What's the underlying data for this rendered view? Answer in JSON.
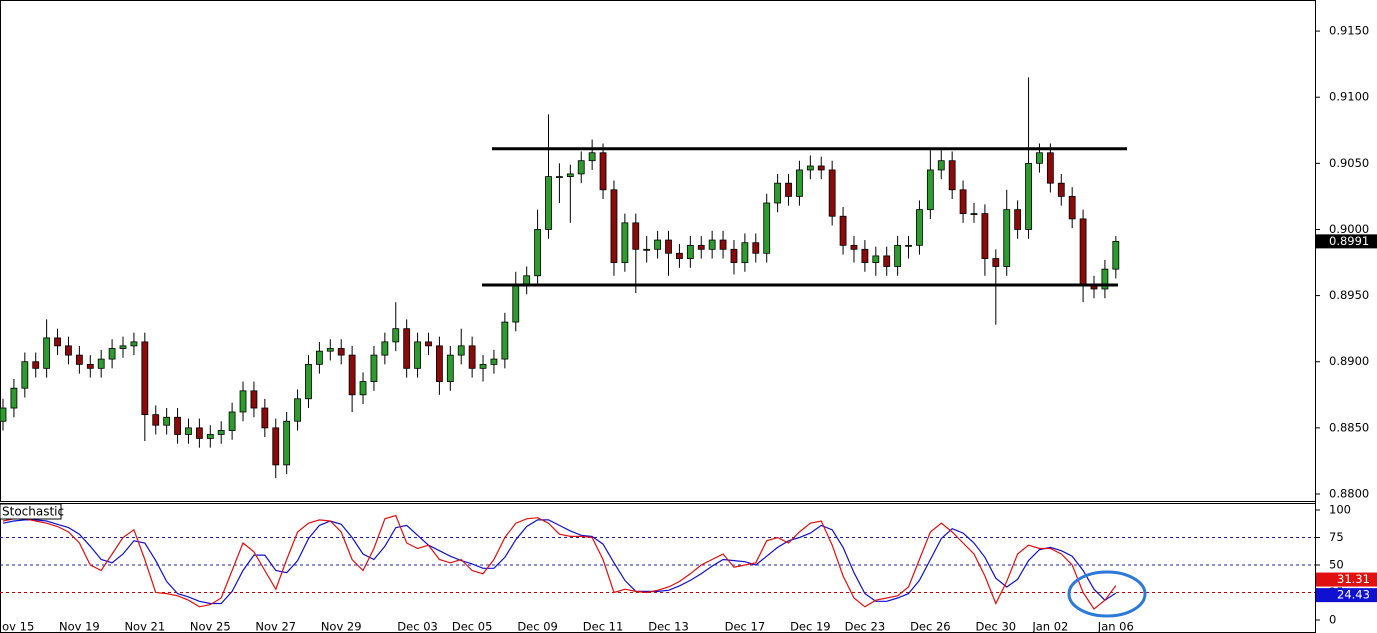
{
  "chart_data": [
    {
      "type": "candlestick",
      "categories": [
        null,
        "Nov 15",
        null,
        null,
        null,
        null,
        null,
        "Nov 19",
        null,
        null,
        null,
        null,
        null,
        "Nov 21",
        null,
        null,
        null,
        null,
        null,
        "Nov 25",
        null,
        null,
        null,
        null,
        null,
        "Nov 27",
        null,
        null,
        null,
        null,
        null,
        "Nov 29",
        null,
        null,
        null,
        null,
        null,
        null,
        "Dec 03",
        null,
        null,
        null,
        null,
        "Dec 05",
        null,
        null,
        null,
        null,
        null,
        "Dec 09",
        null,
        null,
        null,
        null,
        null,
        "Dec 11",
        null,
        null,
        null,
        null,
        null,
        "Dec 13",
        null,
        null,
        null,
        null,
        null,
        null,
        "Dec 17",
        null,
        null,
        null,
        null,
        null,
        "Dec 19",
        null,
        null,
        null,
        null,
        "Dec 23",
        null,
        null,
        null,
        null,
        null,
        "Dec 26",
        null,
        null,
        null,
        null,
        null,
        "Dec 30",
        null,
        null,
        null,
        null,
        "Jan 02",
        null,
        null,
        null,
        null,
        null,
        "Jan 06"
      ],
      "open": [
        0.8855,
        0.8865,
        0.888,
        0.89,
        0.8895,
        0.8918,
        0.8912,
        0.8905,
        0.8898,
        0.8895,
        0.8902,
        0.891,
        0.8912,
        0.8915,
        0.886,
        0.8852,
        0.8858,
        0.8845,
        0.885,
        0.8842,
        0.8845,
        0.8848,
        0.8862,
        0.8878,
        0.8865,
        0.885,
        0.8822,
        0.8855,
        0.8872,
        0.8898,
        0.8908,
        0.891,
        0.8905,
        0.8875,
        0.8885,
        0.8905,
        0.8915,
        0.8925,
        0.8895,
        0.8915,
        0.8912,
        0.8885,
        0.8905,
        0.8912,
        0.8895,
        0.8898,
        0.8902,
        0.893,
        0.8958,
        0.8965,
        0.9,
        0.904,
        0.904,
        0.9042,
        0.9052,
        0.9058,
        0.903,
        0.8975,
        0.9005,
        0.8985,
        0.8985,
        0.8992,
        0.8982,
        0.8978,
        0.8988,
        0.8985,
        0.8992,
        0.8985,
        0.8975,
        0.899,
        0.8982,
        0.902,
        0.9035,
        0.9025,
        0.9045,
        0.9048,
        0.9045,
        0.901,
        0.8988,
        0.8985,
        0.8975,
        0.898,
        0.8972,
        0.8988,
        0.8988,
        0.9015,
        0.9045,
        0.9052,
        0.903,
        0.9012,
        0.9012,
        0.8978,
        0.8972,
        0.9015,
        0.9,
        0.905,
        0.9058,
        0.9035,
        0.9025,
        0.9008,
        0.8958,
        0.8955,
        0.897
      ],
      "high": [
        0.8872,
        0.8887,
        0.8907,
        0.8907,
        0.8932,
        0.8925,
        0.8919,
        0.8912,
        0.8905,
        0.8909,
        0.8917,
        0.8919,
        0.8922,
        0.8922,
        0.8867,
        0.8865,
        0.8865,
        0.8857,
        0.8857,
        0.8852,
        0.8855,
        0.8869,
        0.8885,
        0.8885,
        0.8872,
        0.8857,
        0.8862,
        0.8879,
        0.8905,
        0.8915,
        0.8917,
        0.8917,
        0.8912,
        0.8892,
        0.8912,
        0.8922,
        0.8945,
        0.8932,
        0.8922,
        0.8922,
        0.8919,
        0.8912,
        0.8925,
        0.8919,
        0.8905,
        0.8909,
        0.8937,
        0.8968,
        0.8972,
        0.9015,
        0.9087,
        0.905,
        0.9049,
        0.9059,
        0.9068,
        0.9065,
        0.9037,
        0.9012,
        0.9012,
        0.8995,
        0.8999,
        0.8999,
        0.8989,
        0.8995,
        0.8995,
        0.8999,
        0.8999,
        0.8992,
        0.8997,
        0.8997,
        0.9027,
        0.9042,
        0.9042,
        0.9052,
        0.9056,
        0.9055,
        0.9052,
        0.9017,
        0.8995,
        0.8992,
        0.8987,
        0.8987,
        0.8995,
        0.8995,
        0.9022,
        0.906,
        0.906,
        0.9059,
        0.9037,
        0.902,
        0.9019,
        0.8985,
        0.903,
        0.9022,
        0.9115,
        0.9065,
        0.9065,
        0.9042,
        0.9032,
        0.9015,
        0.8965,
        0.8977,
        0.8995
      ],
      "low": [
        0.8848,
        0.8858,
        0.8873,
        0.8888,
        0.8888,
        0.8905,
        0.8898,
        0.8891,
        0.8888,
        0.8888,
        0.8895,
        0.8903,
        0.8905,
        0.884,
        0.8845,
        0.8845,
        0.8838,
        0.8838,
        0.8835,
        0.8835,
        0.8838,
        0.8841,
        0.8855,
        0.8858,
        0.8843,
        0.8812,
        0.8815,
        0.8848,
        0.8865,
        0.8891,
        0.8901,
        0.8898,
        0.8862,
        0.8868,
        0.8878,
        0.8898,
        0.8908,
        0.8888,
        0.8888,
        0.8905,
        0.8875,
        0.8878,
        0.8898,
        0.8888,
        0.8885,
        0.8891,
        0.8895,
        0.8923,
        0.8951,
        0.8958,
        0.8993,
        0.902,
        0.9005,
        0.9035,
        0.9045,
        0.9023,
        0.8965,
        0.8968,
        0.8952,
        0.8975,
        0.8978,
        0.8965,
        0.8971,
        0.8971,
        0.8978,
        0.8978,
        0.8978,
        0.8966,
        0.8968,
        0.8975,
        0.8975,
        0.9013,
        0.9018,
        0.9018,
        0.9038,
        0.9038,
        0.9003,
        0.8981,
        0.8975,
        0.8968,
        0.8965,
        0.8965,
        0.8965,
        0.8978,
        0.8981,
        0.9008,
        0.9038,
        0.9023,
        0.9005,
        0.9005,
        0.8965,
        0.8928,
        0.8965,
        0.8993,
        0.8993,
        0.9043,
        0.9028,
        0.9018,
        0.9001,
        0.8945,
        0.8948,
        0.8948,
        0.8963
      ],
      "close": [
        0.8865,
        0.888,
        0.89,
        0.8895,
        0.8918,
        0.8912,
        0.8905,
        0.8898,
        0.8895,
        0.8902,
        0.891,
        0.8912,
        0.8915,
        0.886,
        0.8852,
        0.8858,
        0.8845,
        0.885,
        0.8842,
        0.8845,
        0.8848,
        0.8862,
        0.8878,
        0.8865,
        0.885,
        0.8822,
        0.8855,
        0.8872,
        0.8898,
        0.8908,
        0.891,
        0.8905,
        0.8875,
        0.8885,
        0.8905,
        0.8915,
        0.8925,
        0.8895,
        0.8915,
        0.8912,
        0.8885,
        0.8905,
        0.8912,
        0.8895,
        0.8898,
        0.8902,
        0.893,
        0.8958,
        0.8965,
        0.9,
        0.904,
        0.904,
        0.9042,
        0.9052,
        0.9058,
        0.903,
        0.8975,
        0.9005,
        0.8985,
        0.8985,
        0.8992,
        0.8982,
        0.8978,
        0.8988,
        0.8985,
        0.8992,
        0.8985,
        0.8975,
        0.899,
        0.8982,
        0.902,
        0.9035,
        0.9025,
        0.9045,
        0.9048,
        0.9045,
        0.901,
        0.8988,
        0.8985,
        0.8975,
        0.898,
        0.8972,
        0.8988,
        0.8988,
        0.9015,
        0.9045,
        0.9052,
        0.903,
        0.9012,
        0.9012,
        0.8978,
        0.8972,
        0.9015,
        0.9,
        0.905,
        0.9058,
        0.9035,
        0.9025,
        0.9008,
        0.8958,
        0.8955,
        0.897,
        0.8991
      ],
      "up_color": "#2e9b2e",
      "down_color": "#8b0a0a",
      "ylim": [
        0.87947,
        0.91735
      ],
      "yticks": [
        {
          "value": 0.915,
          "label": "0.9150"
        },
        {
          "value": 0.91,
          "label": "0.9100"
        },
        {
          "value": 0.905,
          "label": "0.9050"
        },
        {
          "value": 0.9,
          "label": "0.9000"
        },
        {
          "value": 0.895,
          "label": "0.8950"
        },
        {
          "value": 0.89,
          "label": "0.8900"
        },
        {
          "value": 0.885,
          "label": "0.8850"
        },
        {
          "value": 0.88,
          "label": "0.8800"
        }
      ],
      "hlines": [
        0.9061,
        0.8958
      ]
    },
    {
      "type": "line",
      "title": "Stochastic",
      "series": [
        {
          "color": "#e01010",
          "values": [
            90,
            92,
            92,
            90,
            88,
            85,
            80,
            70,
            50,
            45,
            60,
            75,
            82,
            55,
            25,
            24,
            22,
            18,
            12,
            14,
            20,
            45,
            70,
            62,
            45,
            28,
            55,
            80,
            88,
            91,
            90,
            80,
            55,
            45,
            65,
            92,
            95,
            70,
            65,
            68,
            55,
            52,
            55,
            45,
            42,
            55,
            75,
            88,
            92,
            93,
            88,
            78,
            76,
            76,
            75,
            55,
            25,
            28,
            26,
            25,
            27,
            30,
            35,
            42,
            50,
            55,
            60,
            48,
            50,
            52,
            72,
            75,
            70,
            80,
            88,
            90,
            68,
            40,
            20,
            12,
            18,
            20,
            22,
            30,
            55,
            80,
            88,
            80,
            70,
            60,
            40,
            15,
            35,
            60,
            68,
            65,
            65,
            60,
            50,
            25,
            10,
            18,
            31.31
          ]
        },
        {
          "color": "#1010d0",
          "values": [
            88,
            90,
            91,
            91,
            90,
            87,
            84,
            78,
            67,
            55,
            52,
            60,
            72,
            70,
            54,
            35,
            24,
            21,
            17,
            15,
            15,
            26,
            45,
            59,
            59,
            45,
            43,
            54,
            74,
            86,
            90,
            87,
            75,
            60,
            55,
            67,
            84,
            86,
            77,
            68,
            63,
            58,
            54,
            51,
            47,
            47,
            57,
            73,
            85,
            91,
            91,
            86,
            81,
            77,
            76,
            69,
            52,
            36,
            26,
            26,
            26,
            27,
            31,
            36,
            42,
            49,
            55,
            54,
            53,
            50,
            58,
            66,
            72,
            75,
            79,
            86,
            82,
            66,
            43,
            24,
            17,
            17,
            20,
            24,
            36,
            55,
            74,
            83,
            79,
            70,
            57,
            38,
            30,
            37,
            54,
            64,
            66,
            63,
            58,
            45,
            28,
            18,
            24.43
          ]
        }
      ],
      "ylim": [
        0,
        100
      ],
      "yticks": [
        100,
        75,
        50,
        25,
        0
      ],
      "levels": [
        75,
        50,
        25
      ],
      "level_colors": [
        "#2020a0",
        "#2020a0",
        "#c00000"
      ]
    }
  ]
}
